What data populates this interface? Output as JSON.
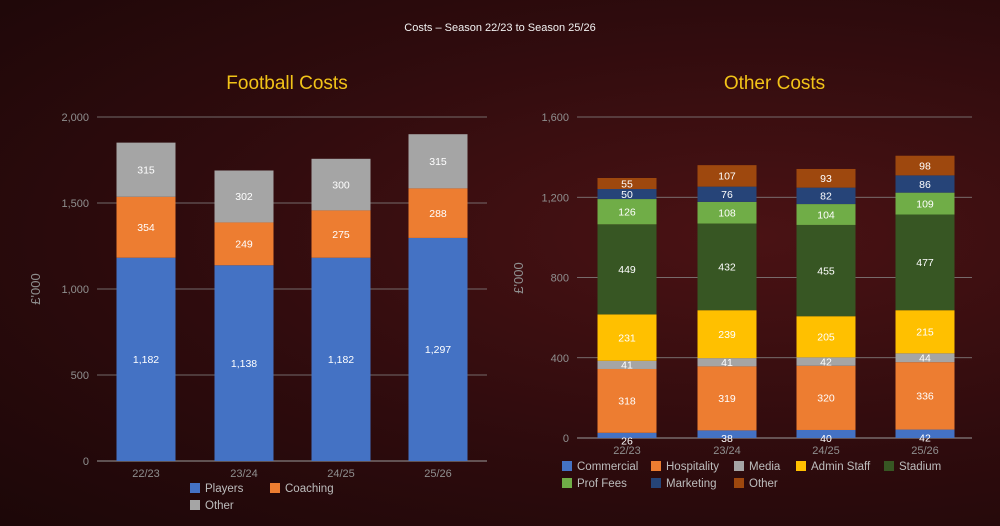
{
  "title": "Costs – Season 22/23 to Season 25/26",
  "chart_data": [
    {
      "type": "bar",
      "stacked": true,
      "title": "Football Costs",
      "ylabel": "£'000",
      "ylim": [
        0,
        2000
      ],
      "ytick_labels": [
        "0",
        "500",
        "1,000",
        "1,500",
        "2,000"
      ],
      "ytick_values": [
        0,
        500,
        1000,
        1500,
        2000
      ],
      "categories": [
        "22/23",
        "23/24",
        "24/25",
        "25/26"
      ],
      "series": [
        {
          "name": "Players",
          "color": "#4472c4",
          "values": [
            1182,
            1138,
            1182,
            1297
          ],
          "labels": [
            "1,182",
            "1,138",
            "1,182",
            "1,297"
          ]
        },
        {
          "name": "Coaching",
          "color": "#ed7d31",
          "values": [
            354,
            249,
            275,
            288
          ],
          "labels": [
            "354",
            "249",
            "275",
            "288"
          ]
        },
        {
          "name": "Other",
          "color": "#a5a5a5",
          "values": [
            315,
            302,
            300,
            315
          ],
          "labels": [
            "315",
            "302",
            "300",
            "315"
          ]
        }
      ],
      "legend_position": "bottom"
    },
    {
      "type": "bar",
      "stacked": true,
      "title": "Other Costs",
      "ylabel": "£'000",
      "ylim": [
        0,
        1600
      ],
      "ytick_labels": [
        "0",
        "400",
        "800",
        "1,200",
        "1,600"
      ],
      "ytick_values": [
        0,
        400,
        800,
        1200,
        1600
      ],
      "categories": [
        "22/23",
        "23/24",
        "24/25",
        "25/26"
      ],
      "series": [
        {
          "name": "Commercial",
          "color": "#4472c4",
          "values": [
            26,
            38,
            40,
            42
          ],
          "labels": [
            "26",
            "38",
            "40",
            "42"
          ]
        },
        {
          "name": "Hospitality",
          "color": "#ed7d31",
          "values": [
            318,
            319,
            320,
            336
          ],
          "labels": [
            "318",
            "319",
            "320",
            "336"
          ]
        },
        {
          "name": "Media",
          "color": "#a5a5a5",
          "values": [
            41,
            41,
            42,
            44
          ],
          "labels": [
            "41",
            "41",
            "42",
            "44"
          ]
        },
        {
          "name": "Admin Staff",
          "color": "#ffc000",
          "values": [
            231,
            239,
            205,
            215
          ],
          "labels": [
            "231",
            "239",
            "205",
            "215"
          ]
        },
        {
          "name": "Stadium",
          "color": "#375623",
          "values": [
            449,
            432,
            455,
            477
          ],
          "labels": [
            "449",
            "432",
            "455",
            "477"
          ]
        },
        {
          "name": "Prof Fees",
          "color": "#70ad47",
          "values": [
            126,
            108,
            104,
            109
          ],
          "labels": [
            "126",
            "108",
            "104",
            "109"
          ]
        },
        {
          "name": "Marketing",
          "color": "#264478",
          "values": [
            50,
            76,
            82,
            86
          ],
          "labels": [
            "50",
            "76",
            "82",
            "86"
          ]
        },
        {
          "name": "Other",
          "color": "#9e480e",
          "values": [
            55,
            107,
            93,
            98
          ],
          "labels": [
            "55",
            "107",
            "93",
            "98"
          ]
        }
      ],
      "legend_position": "bottom"
    }
  ]
}
